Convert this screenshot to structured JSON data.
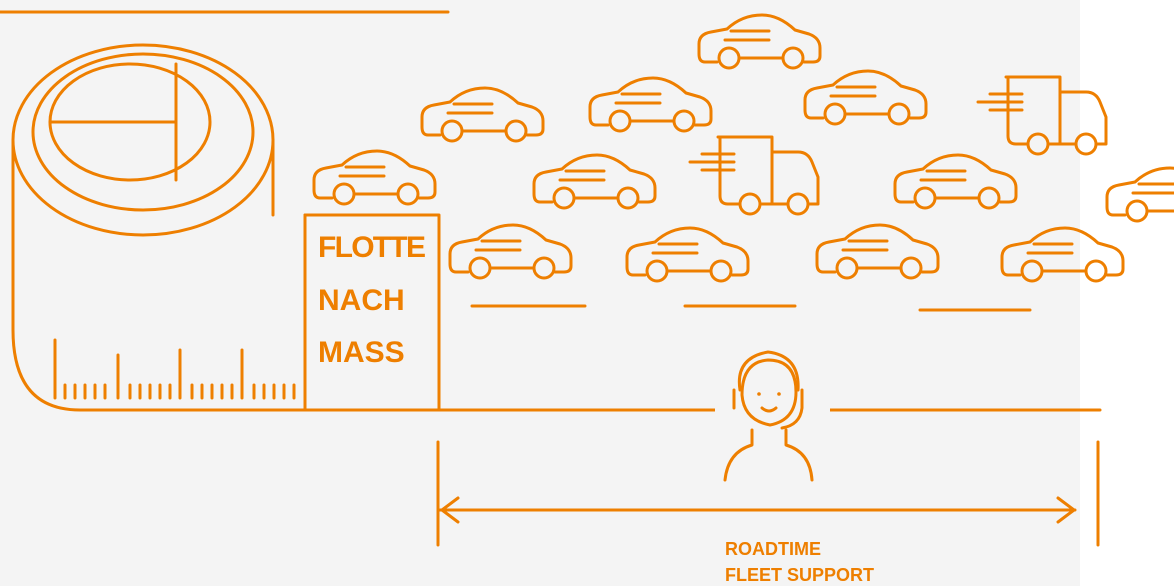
{
  "tape_label": {
    "lines": [
      "FLOTTE",
      "NACH",
      "MASS"
    ]
  },
  "support_label": {
    "lines": [
      "ROADTIME",
      "FLEET SUPPORT"
    ]
  }
}
